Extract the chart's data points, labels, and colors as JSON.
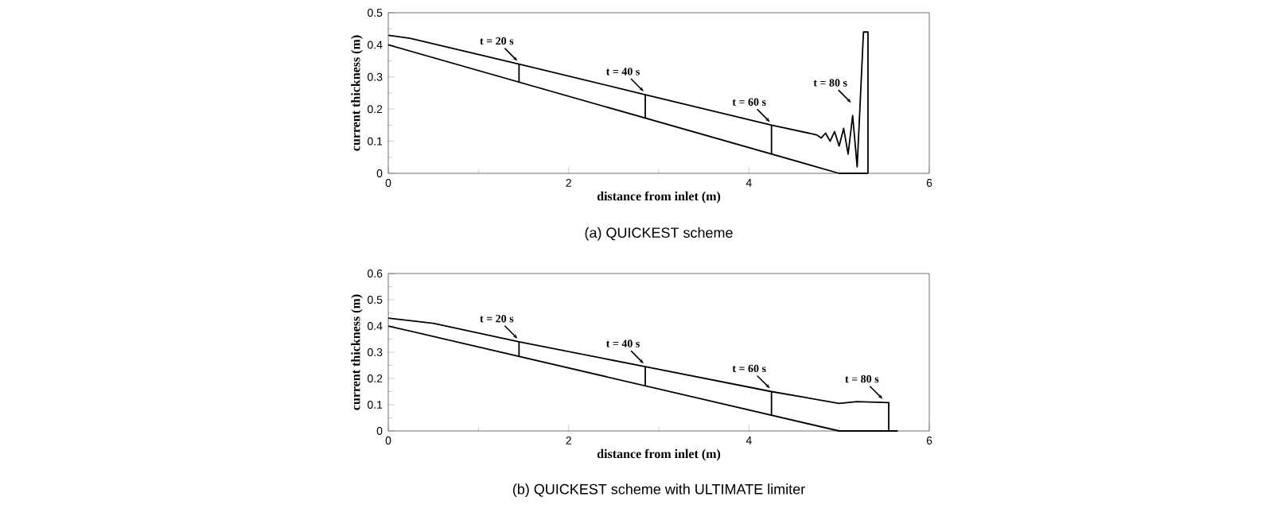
{
  "chart_data": [
    {
      "type": "line",
      "title": "(a) QUICKEST scheme",
      "xlabel": "distance from inlet (m)",
      "ylabel": "current thickness (m)",
      "xlim": [
        0,
        6
      ],
      "ylim": [
        0,
        0.5
      ],
      "xticks": [
        0,
        2,
        4,
        6
      ],
      "yticks": [
        0,
        0.1,
        0.2,
        0.3,
        0.4,
        0.5
      ],
      "series": [
        {
          "color": "#000000",
          "x": [
            0,
            0.25,
            1.45,
            2.85,
            4.25,
            4.75,
            4.8,
            4.85,
            4.9,
            4.95,
            5.0,
            5.05,
            5.1,
            5.15,
            5.2,
            5.27,
            5.32,
            5.32
          ],
          "values": [
            0.43,
            0.42,
            0.34,
            0.245,
            0.15,
            0.12,
            0.11,
            0.125,
            0.1,
            0.13,
            0.085,
            0.14,
            0.06,
            0.18,
            0.02,
            0.44,
            0.44,
            0
          ]
        },
        {
          "color": "#000000",
          "x": [
            0,
            5.0,
            5.32
          ],
          "values": [
            0.4,
            0,
            0
          ]
        },
        {
          "color": "#000000",
          "x": [
            1.45,
            1.45
          ],
          "values": [
            0.284,
            0.34
          ]
        },
        {
          "color": "#000000",
          "x": [
            2.85,
            2.85
          ],
          "values": [
            0.172,
            0.245
          ]
        },
        {
          "color": "#000000",
          "x": [
            4.25,
            4.25
          ],
          "values": [
            0.06,
            0.15
          ]
        }
      ],
      "annotations": [
        {
          "text": "t = 20 s",
          "x": 1.45,
          "y": 0.34
        },
        {
          "text": "t = 40 s",
          "x": 2.85,
          "y": 0.245
        },
        {
          "text": "t = 60 s",
          "x": 4.25,
          "y": 0.15
        },
        {
          "text": "t = 80 s",
          "x": 5.15,
          "y": 0.21
        }
      ]
    },
    {
      "type": "line",
      "title": "(b) QUICKEST scheme with ULTIMATE limiter",
      "xlabel": "distance from inlet (m)",
      "ylabel": "current thickness (m)",
      "xlim": [
        0,
        6
      ],
      "ylim": [
        0,
        0.6
      ],
      "xticks": [
        0,
        2,
        4,
        6
      ],
      "yticks": [
        0,
        0.1,
        0.2,
        0.3,
        0.4,
        0.5,
        0.6
      ],
      "series": [
        {
          "color": "#000000",
          "x": [
            0,
            0.5,
            1.45,
            2.85,
            4.25,
            5.0,
            5.2,
            5.55,
            5.55
          ],
          "values": [
            0.43,
            0.41,
            0.34,
            0.245,
            0.15,
            0.105,
            0.112,
            0.108,
            0
          ]
        },
        {
          "color": "#000000",
          "x": [
            0,
            5.0,
            5.65
          ],
          "values": [
            0.4,
            0,
            0
          ]
        },
        {
          "color": "#000000",
          "x": [
            1.45,
            1.45
          ],
          "values": [
            0.284,
            0.34
          ]
        },
        {
          "color": "#000000",
          "x": [
            2.85,
            2.85
          ],
          "values": [
            0.172,
            0.245
          ]
        },
        {
          "color": "#000000",
          "x": [
            4.25,
            4.25
          ],
          "values": [
            0.06,
            0.15
          ]
        }
      ],
      "annotations": [
        {
          "text": "t = 20 s",
          "x": 1.45,
          "y": 0.34
        },
        {
          "text": "t = 40 s",
          "x": 2.85,
          "y": 0.245
        },
        {
          "text": "t = 60 s",
          "x": 4.25,
          "y": 0.15
        },
        {
          "text": "t = 80 s",
          "x": 5.5,
          "y": 0.11
        }
      ]
    }
  ]
}
